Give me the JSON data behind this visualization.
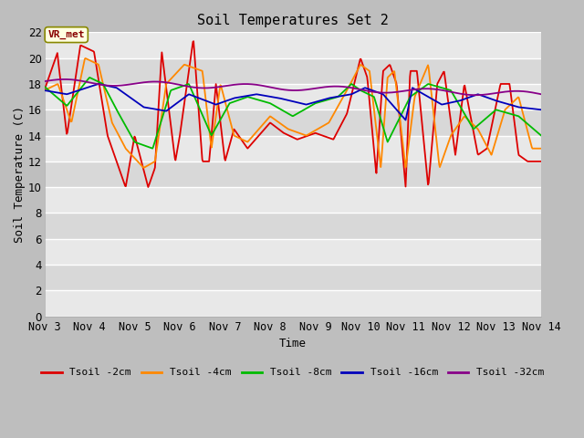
{
  "title": "Soil Temperatures Set 2",
  "xlabel": "Time",
  "ylabel": "Soil Temperature (C)",
  "ylim": [
    0,
    22
  ],
  "yticks": [
    0,
    2,
    4,
    6,
    8,
    10,
    12,
    14,
    16,
    18,
    20,
    22
  ],
  "xlim_days": [
    3,
    14
  ],
  "xtick_days": [
    3,
    4,
    5,
    6,
    7,
    8,
    9,
    10,
    11,
    12,
    13,
    14
  ],
  "xtick_labels": [
    "Nov 3",
    "Nov 4",
    "Nov 5",
    "Nov 6",
    "Nov 7",
    "Nov 8",
    "Nov 9",
    "Nov 10",
    "Nov 11",
    "Nov 12",
    "Nov 13",
    "Nov 14"
  ],
  "fig_bg": "#c8c8c8",
  "plot_bg_light": "#e8e8e8",
  "plot_bg_dark": "#d8d8d8",
  "grid_color": "#ffffff",
  "annotation_text": "VR_met",
  "annotation_bg": "#ffffe0",
  "annotation_border": "#888800",
  "annotation_text_color": "#880000",
  "legend_labels": [
    "Tsoil -2cm",
    "Tsoil -4cm",
    "Tsoil -8cm",
    "Tsoil -16cm",
    "Tsoil -32cm"
  ],
  "line_colors": [
    "#dd0000",
    "#ff8800",
    "#00bb00",
    "#0000bb",
    "#880088"
  ],
  "line_width": 1.3
}
